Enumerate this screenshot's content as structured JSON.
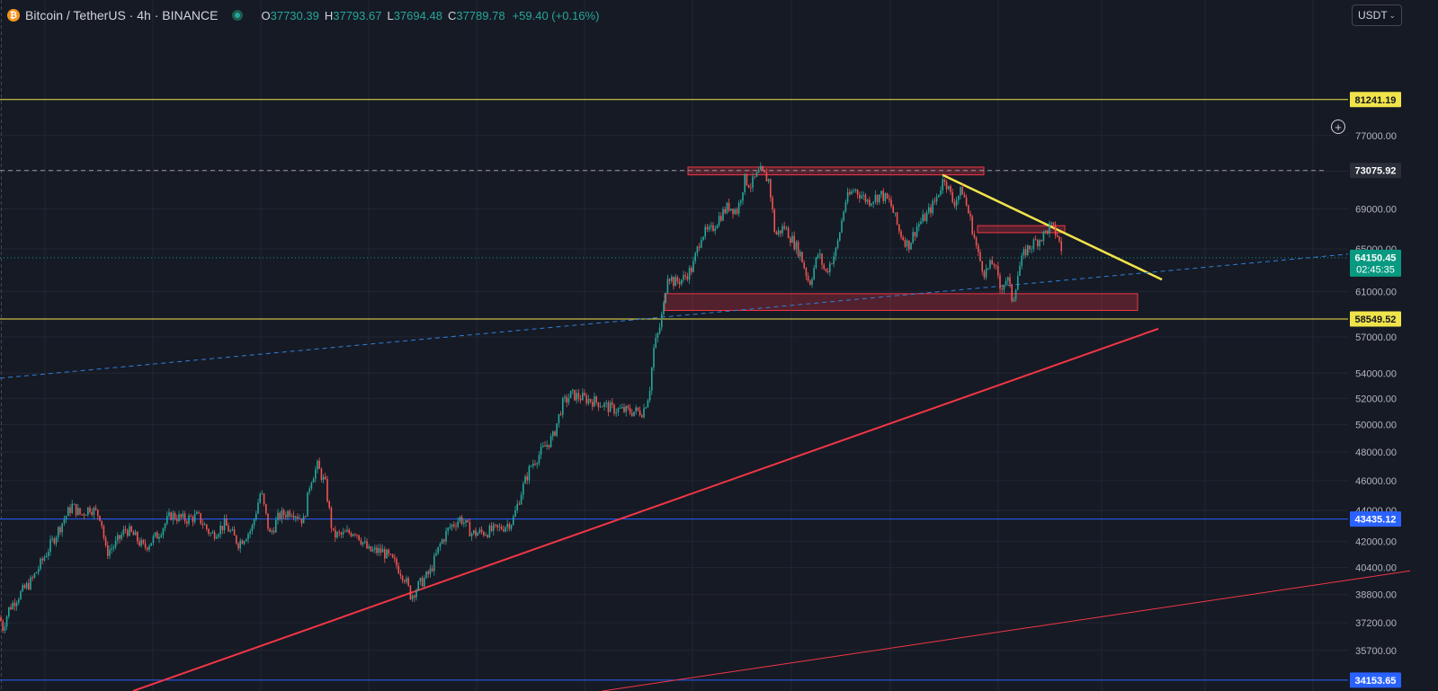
{
  "header": {
    "symbol": "Bitcoin / TetherUS · 4h · BINANCE",
    "open_key": "O",
    "open": "37730.39",
    "high_key": "H",
    "high": "37793.67",
    "low_key": "L",
    "low": "37694.48",
    "close_key": "C",
    "close": "37789.78",
    "change": "+59.40 (+0.16%)",
    "currency": "USDT"
  },
  "colors": {
    "background": "#161a25",
    "grid": "#232632",
    "up": "#26a69a",
    "down": "#ef5350",
    "support_resistance": "#f0e44a",
    "blue_level": "#2962ff",
    "trend_red": "#f23645",
    "zone_fill": "rgba(242,54,69,0.28)",
    "zone_border": "#f23645",
    "dotted_trend": "#2f7fd9"
  },
  "chart_data": {
    "type": "candlestick",
    "y_axis_ticks": [
      "77000.00",
      "73000.00",
      "69000.00",
      "65000.00",
      "61000.00",
      "57000.00",
      "54000.00",
      "52000.00",
      "50000.00",
      "48000.00",
      "46000.00",
      "44000.00",
      "42000.00",
      "40400.00",
      "38800.00",
      "37200.00",
      "35700.00"
    ],
    "y_scale": "log",
    "ylim": [
      33600,
      93000
    ],
    "price_labels": [
      {
        "value": "81241.19",
        "kind": "horizontal-line",
        "color": "#f0e44a"
      },
      {
        "value": "73075.92",
        "kind": "crosshair",
        "color": "#2a2e39"
      },
      {
        "value": "64150.45",
        "kind": "last-price",
        "countdown": "02:45:35",
        "color": "#089981"
      },
      {
        "value": "58549.52",
        "kind": "horizontal-line",
        "color": "#f0e44a"
      },
      {
        "value": "43435.12",
        "kind": "horizontal-line",
        "color": "#2962ff"
      },
      {
        "value": "34153.65",
        "kind": "horizontal-line",
        "color": "#2962ff"
      }
    ],
    "price_path": [
      [
        0,
        37500
      ],
      [
        3,
        36900
      ],
      [
        10,
        38000
      ],
      [
        20,
        38700
      ],
      [
        35,
        39600
      ],
      [
        45,
        40600
      ],
      [
        60,
        42200
      ],
      [
        70,
        43300
      ],
      [
        80,
        44300
      ],
      [
        90,
        43700
      ],
      [
        100,
        44200
      ],
      [
        112,
        43600
      ],
      [
        118,
        41300
      ],
      [
        128,
        41800
      ],
      [
        140,
        42800
      ],
      [
        150,
        42300
      ],
      [
        160,
        41600
      ],
      [
        175,
        42400
      ],
      [
        190,
        43700
      ],
      [
        205,
        43400
      ],
      [
        220,
        43600
      ],
      [
        235,
        42400
      ],
      [
        250,
        43100
      ],
      [
        265,
        41900
      ],
      [
        280,
        42800
      ],
      [
        290,
        45300
      ],
      [
        300,
        42400
      ],
      [
        310,
        43600
      ],
      [
        325,
        44000
      ],
      [
        338,
        43300
      ],
      [
        345,
        46000
      ],
      [
        353,
        47000
      ],
      [
        362,
        45700
      ],
      [
        370,
        42400
      ],
      [
        380,
        42400
      ],
      [
        395,
        42700
      ],
      [
        410,
        41400
      ],
      [
        425,
        41400
      ],
      [
        440,
        40600
      ],
      [
        450,
        39800
      ],
      [
        457,
        38700
      ],
      [
        465,
        39300
      ],
      [
        478,
        40100
      ],
      [
        490,
        41900
      ],
      [
        500,
        42900
      ],
      [
        512,
        43500
      ],
      [
        525,
        42500
      ],
      [
        540,
        42600
      ],
      [
        555,
        42800
      ],
      [
        570,
        43300
      ],
      [
        580,
        45300
      ],
      [
        590,
        47000
      ],
      [
        605,
        48300
      ],
      [
        615,
        49100
      ],
      [
        625,
        51500
      ],
      [
        635,
        52300
      ],
      [
        650,
        52000
      ],
      [
        665,
        51700
      ],
      [
        680,
        51200
      ],
      [
        700,
        51000
      ],
      [
        715,
        51000
      ],
      [
        722,
        52500
      ],
      [
        727,
        56000
      ],
      [
        733,
        57600
      ],
      [
        738,
        59700
      ],
      [
        742,
        62700
      ],
      [
        750,
        61800
      ],
      [
        760,
        62200
      ],
      [
        770,
        63200
      ],
      [
        780,
        66500
      ],
      [
        790,
        66700
      ],
      [
        800,
        68200
      ],
      [
        810,
        69300
      ],
      [
        820,
        68800
      ],
      [
        828,
        72100
      ],
      [
        835,
        71500
      ],
      [
        845,
        73000
      ],
      [
        855,
        72000
      ],
      [
        862,
        66300
      ],
      [
        872,
        67200
      ],
      [
        880,
        66000
      ],
      [
        890,
        64500
      ],
      [
        900,
        61700
      ],
      [
        910,
        64600
      ],
      [
        918,
        62700
      ],
      [
        930,
        64900
      ],
      [
        940,
        69800
      ],
      [
        950,
        71100
      ],
      [
        965,
        69800
      ],
      [
        980,
        70500
      ],
      [
        990,
        69600
      ],
      [
        1000,
        66700
      ],
      [
        1010,
        65300
      ],
      [
        1020,
        67300
      ],
      [
        1030,
        68300
      ],
      [
        1040,
        69800
      ],
      [
        1050,
        72400
      ],
      [
        1060,
        69600
      ],
      [
        1070,
        71000
      ],
      [
        1080,
        67500
      ],
      [
        1088,
        64300
      ],
      [
        1095,
        62700
      ],
      [
        1105,
        63800
      ],
      [
        1112,
        61300
      ],
      [
        1120,
        62300
      ],
      [
        1126,
        60100
      ],
      [
        1133,
        63100
      ],
      [
        1140,
        64800
      ],
      [
        1150,
        65600
      ],
      [
        1160,
        66300
      ],
      [
        1168,
        67300
      ],
      [
        1176,
        66300
      ],
      [
        1182,
        64150
      ]
    ],
    "annotations": [
      {
        "type": "trendline",
        "color": "#f0e44a",
        "from": [
          1048,
          72600
        ],
        "to": [
          1292,
          62100
        ]
      },
      {
        "type": "trendline",
        "color": "#f23645",
        "from": [
          148,
          33600
        ],
        "to": [
          1288,
          57700
        ]
      },
      {
        "type": "trendline",
        "color": "#f23645",
        "from": [
          670,
          33600
        ],
        "to": [
          1568,
          40200
        ]
      },
      {
        "type": "dashed-trendline",
        "color": "#2f7fd9",
        "from": [
          0,
          53600
        ],
        "to": [
          1499,
          64500
        ]
      },
      {
        "type": "zone",
        "from_x": 765,
        "to_x": 1094,
        "top": 73450,
        "bottom": 72600
      },
      {
        "type": "zone",
        "from_x": 1087,
        "to_x": 1184,
        "top": 67300,
        "bottom": 66600
      },
      {
        "type": "zone",
        "from_x": 739,
        "to_x": 1265,
        "top": 60800,
        "bottom": 59300
      }
    ]
  }
}
